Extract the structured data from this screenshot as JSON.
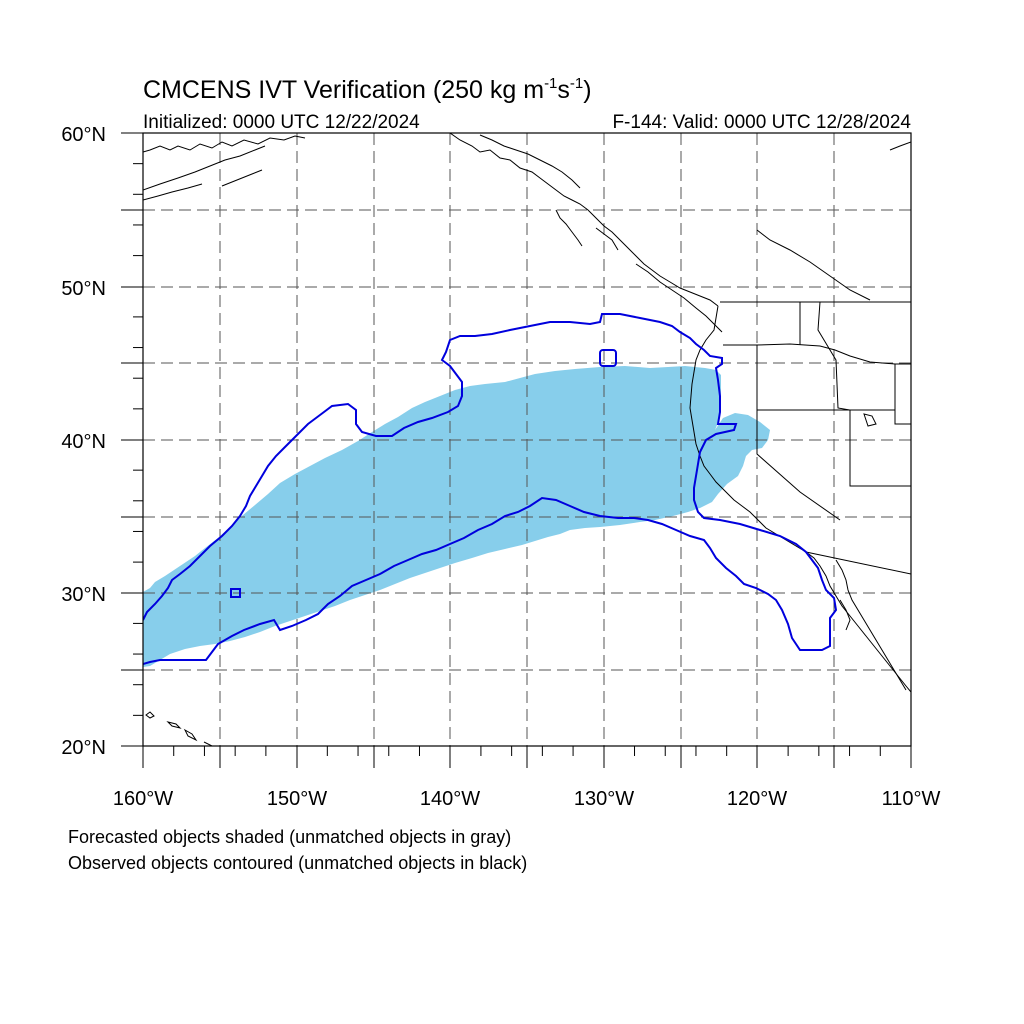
{
  "title": {
    "prefix": "CMCENS IVT Verification (250 kg m",
    "exp1": "-1",
    "mid": "s",
    "exp2": "-1",
    "suffix": ")"
  },
  "init_label": "Initialized: 0000 UTC 12/22/2024",
  "valid_label": "F-144: Valid: 0000 UTC 12/28/2024",
  "map": {
    "lon_range": [
      -160,
      -110
    ],
    "lat_range": [
      20,
      60
    ],
    "lat_labels": [
      "20°N",
      "30°N",
      "40°N",
      "50°N",
      "60°N"
    ],
    "lon_labels": [
      "160°W",
      "150°W",
      "140°W",
      "130°W",
      "120°W",
      "110°W"
    ],
    "grid": "dashed, every 5 degrees",
    "forecast_color": "#87CEEB",
    "observed_color": "#0000DD",
    "coast_color": "#000000"
  },
  "footnote_1": "Forecasted objects shaded (unmatched objects in gray)",
  "footnote_2": "Observed objects contoured (unmatched objects in black)"
}
